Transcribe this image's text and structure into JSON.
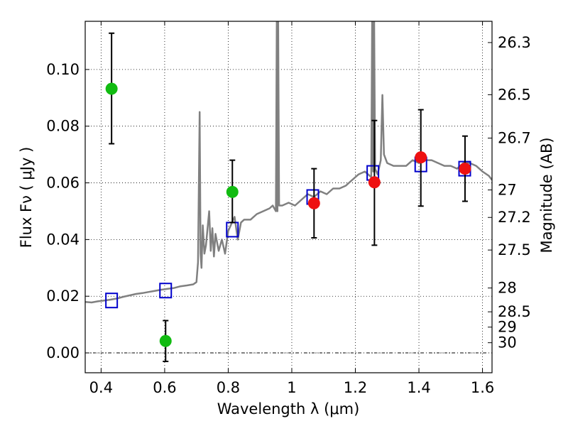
{
  "chart_data": {
    "type": "scatter",
    "xlabel": "Wavelength  λ (μm)",
    "ylabel": "Flux  Fν  ( μJy )",
    "ylabel_right": "Magnitude (AB)",
    "xlim": [
      0.35,
      1.63
    ],
    "ylim": [
      -0.007,
      0.117
    ],
    "xticks": [
      0.4,
      0.6,
      0.8,
      1.0,
      1.2,
      1.4,
      1.6
    ],
    "xtick_labels": [
      "0.4",
      "0.6",
      "0.8",
      "1",
      "1.2",
      "1.4",
      "1.6"
    ],
    "yticks": [
      0.0,
      0.02,
      0.04,
      0.06,
      0.08,
      0.1
    ],
    "ytick_labels": [
      "0.00",
      "0.02",
      "0.04",
      "0.06",
      "0.08",
      "0.10"
    ],
    "right_ticks": [
      {
        "label": "26.3",
        "flux": 0.1095
      },
      {
        "label": "26.5",
        "flux": 0.0911
      },
      {
        "label": "26.7",
        "flux": 0.0758
      },
      {
        "label": "27",
        "flux": 0.0575
      },
      {
        "label": "27.2",
        "flux": 0.0478
      },
      {
        "label": "27.5",
        "flux": 0.0363
      },
      {
        "label": "28",
        "flux": 0.0229
      },
      {
        "label": "28.5",
        "flux": 0.0145
      },
      {
        "label": "29",
        "flux": 0.0091
      },
      {
        "label": "30",
        "flux": 0.0036
      }
    ],
    "grid": true,
    "colors": {
      "spectrum": "#808080",
      "model_points": "#0000cc",
      "green_points": "#11bb11",
      "red_points": "#ee1111",
      "errorbars": "#000000",
      "zero_line": "#000000"
    },
    "series": [
      {
        "kind": "model-spectrum",
        "x": [
          0.35,
          0.37,
          0.39,
          0.41,
          0.43,
          0.45,
          0.47,
          0.49,
          0.51,
          0.53,
          0.55,
          0.57,
          0.59,
          0.61,
          0.63,
          0.65,
          0.67,
          0.69,
          0.7,
          0.705,
          0.71,
          0.713,
          0.716,
          0.72,
          0.725,
          0.73,
          0.74,
          0.745,
          0.75,
          0.755,
          0.76,
          0.77,
          0.78,
          0.79,
          0.8,
          0.82,
          0.83,
          0.84,
          0.85,
          0.87,
          0.89,
          0.91,
          0.93,
          0.94,
          0.95,
          0.953,
          0.955,
          0.957,
          0.96,
          0.97,
          0.99,
          1.01,
          1.03,
          1.05,
          1.07,
          1.09,
          1.11,
          1.13,
          1.15,
          1.17,
          1.19,
          1.21,
          1.23,
          1.24,
          1.25,
          1.253,
          1.256,
          1.259,
          1.262,
          1.27,
          1.28,
          1.285,
          1.29,
          1.3,
          1.32,
          1.34,
          1.36,
          1.38,
          1.4,
          1.42,
          1.44,
          1.46,
          1.48,
          1.5,
          1.52,
          1.54,
          1.56,
          1.58,
          1.6,
          1.62,
          1.63
        ],
        "y": [
          0.018,
          0.0178,
          0.0182,
          0.0185,
          0.0188,
          0.0192,
          0.0198,
          0.0203,
          0.0208,
          0.0211,
          0.0215,
          0.0219,
          0.0223,
          0.0226,
          0.0229,
          0.0235,
          0.0238,
          0.0242,
          0.025,
          0.032,
          0.085,
          0.035,
          0.03,
          0.045,
          0.035,
          0.038,
          0.05,
          0.036,
          0.044,
          0.034,
          0.042,
          0.036,
          0.04,
          0.035,
          0.043,
          0.048,
          0.04,
          0.046,
          0.047,
          0.047,
          0.049,
          0.05,
          0.051,
          0.052,
          0.05,
          0.12,
          0.05,
          0.12,
          0.052,
          0.052,
          0.053,
          0.052,
          0.054,
          0.056,
          0.055,
          0.057,
          0.056,
          0.058,
          0.058,
          0.059,
          0.061,
          0.063,
          0.064,
          0.063,
          0.062,
          0.12,
          0.064,
          0.12,
          0.065,
          0.063,
          0.068,
          0.091,
          0.07,
          0.067,
          0.066,
          0.066,
          0.066,
          0.068,
          0.067,
          0.068,
          0.068,
          0.067,
          0.066,
          0.066,
          0.065,
          0.067,
          0.067,
          0.066,
          0.064,
          0.0625,
          0.061
        ]
      },
      {
        "kind": "model-photometry",
        "marker": "open-square",
        "x": [
          0.433,
          0.603,
          0.813,
          1.066,
          1.255,
          1.406,
          1.544
        ],
        "y": [
          0.0185,
          0.022,
          0.0435,
          0.055,
          0.0635,
          0.0665,
          0.065
        ]
      },
      {
        "kind": "observed-optical",
        "marker": "filled-circle",
        "x": [
          0.433,
          0.603,
          0.813
        ],
        "y": [
          0.0932,
          0.0042,
          0.0568
        ],
        "err_low": [
          0.0194,
          0.0072,
          0.0108
        ],
        "err_high": [
          0.0196,
          0.0072,
          0.0112
        ]
      },
      {
        "kind": "observed-infrared",
        "marker": "filled-circle",
        "x": [
          1.07,
          1.26,
          1.406,
          1.545
        ],
        "y": [
          0.0528,
          0.0602,
          0.069,
          0.065
        ],
        "err_low": [
          0.0122,
          0.0222,
          0.0172,
          0.0115
        ],
        "err_high": [
          0.0122,
          0.0218,
          0.0168,
          0.0115
        ]
      }
    ]
  }
}
